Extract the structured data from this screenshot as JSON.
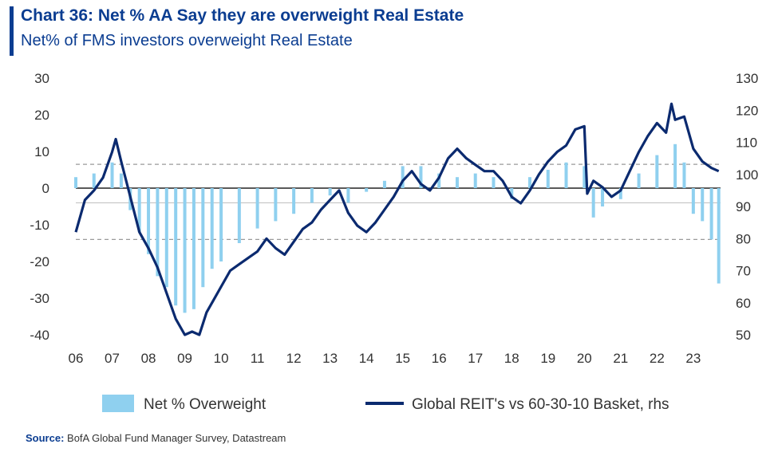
{
  "header": {
    "title": "Chart 36: Net % AA Say they are overweight Real Estate",
    "subtitle": "Net% of FMS investors overweight Real Estate"
  },
  "source": {
    "label": "Source:",
    "text": "BofA Global Fund Manager Survey, Datastream"
  },
  "colors": {
    "bar": "#8fd0ef",
    "line": "#0b2a6f",
    "title": "#0b3d91",
    "refline": "#9a9a9a"
  },
  "chart_data": {
    "type": "bar+line",
    "title": "Chart 36: Net % AA Say they are overweight Real Estate",
    "subtitle": "Net% of FMS investors overweight Real Estate",
    "x_tick_labels": [
      "06",
      "07",
      "08",
      "09",
      "10",
      "11",
      "12",
      "13",
      "14",
      "15",
      "16",
      "17",
      "18",
      "19",
      "20",
      "21",
      "22",
      "23"
    ],
    "x_range": [
      2006.0,
      2023.75
    ],
    "y_left": {
      "range": [
        -40,
        30
      ],
      "ticks": [
        30,
        20,
        10,
        0,
        -10,
        -20,
        -30,
        -40
      ]
    },
    "y_right": {
      "range": [
        50,
        130
      ],
      "ticks": [
        130,
        120,
        110,
        100,
        90,
        80,
        70,
        60,
        50
      ]
    },
    "reference_lines": {
      "zero": 0,
      "dashed": [
        6.5,
        -14
      ]
    },
    "legend": {
      "position": "bottom"
    },
    "series": [
      {
        "name": "Net % Overweight",
        "kind": "bar",
        "axis": "left",
        "x": [
          2006.0,
          2006.5,
          2007.0,
          2007.25,
          2007.5,
          2007.75,
          2008.0,
          2008.25,
          2008.5,
          2008.75,
          2009.0,
          2009.25,
          2009.5,
          2009.75,
          2010.0,
          2010.5,
          2011.0,
          2011.5,
          2012.0,
          2012.5,
          2013.0,
          2013.5,
          2014.0,
          2014.5,
          2015.0,
          2015.5,
          2016.0,
          2016.5,
          2017.0,
          2017.5,
          2018.0,
          2018.5,
          2019.0,
          2019.5,
          2020.0,
          2020.25,
          2020.5,
          2021.0,
          2021.5,
          2022.0,
          2022.5,
          2022.75,
          2023.0,
          2023.25,
          2023.5,
          2023.7
        ],
        "values": [
          3,
          4,
          7,
          4,
          -6,
          -12,
          -18,
          -24,
          -27,
          -32,
          -34,
          -33,
          -27,
          -22,
          -20,
          -15,
          -11,
          -9,
          -7,
          -4,
          -2,
          -4,
          -1,
          2,
          6,
          6,
          4,
          3,
          4,
          3,
          -3,
          3,
          5,
          7,
          6,
          -8,
          -5,
          -3,
          4,
          9,
          12,
          7,
          -7,
          -9,
          -14,
          -26
        ]
      },
      {
        "name": "Global REIT's vs 60-30-10 Basket, rhs",
        "kind": "line",
        "axis": "right",
        "x": [
          2006.0,
          2006.25,
          2006.5,
          2006.75,
          2007.0,
          2007.1,
          2007.25,
          2007.5,
          2007.75,
          2008.0,
          2008.25,
          2008.5,
          2008.75,
          2009.0,
          2009.2,
          2009.4,
          2009.6,
          2009.75,
          2010.0,
          2010.25,
          2010.5,
          2010.75,
          2011.0,
          2011.25,
          2011.5,
          2011.75,
          2012.0,
          2012.25,
          2012.5,
          2012.75,
          2013.0,
          2013.25,
          2013.5,
          2013.75,
          2014.0,
          2014.25,
          2014.5,
          2014.75,
          2015.0,
          2015.25,
          2015.5,
          2015.75,
          2016.0,
          2016.25,
          2016.5,
          2016.75,
          2017.0,
          2017.25,
          2017.5,
          2017.75,
          2018.0,
          2018.25,
          2018.5,
          2018.75,
          2019.0,
          2019.25,
          2019.5,
          2019.75,
          2020.0,
          2020.08,
          2020.25,
          2020.5,
          2020.75,
          2021.0,
          2021.25,
          2021.5,
          2021.75,
          2022.0,
          2022.25,
          2022.4,
          2022.5,
          2022.75,
          2023.0,
          2023.25,
          2023.5,
          2023.7
        ],
        "values": [
          82,
          92,
          95,
          99,
          107,
          111,
          104,
          93,
          82,
          77,
          71,
          63,
          55,
          50,
          51,
          50,
          57,
          60,
          65,
          70,
          72,
          74,
          76,
          80,
          77,
          75,
          79,
          83,
          85,
          89,
          92,
          95,
          88,
          84,
          82,
          85,
          89,
          93,
          98,
          101,
          97,
          95,
          99,
          105,
          108,
          105,
          103,
          101,
          101,
          98,
          93,
          91,
          95,
          100,
          104,
          107,
          109,
          114,
          115,
          94,
          98,
          96,
          93,
          95,
          101,
          107,
          112,
          116,
          113,
          122,
          117,
          118,
          108,
          104,
          102,
          101
        ]
      }
    ]
  }
}
